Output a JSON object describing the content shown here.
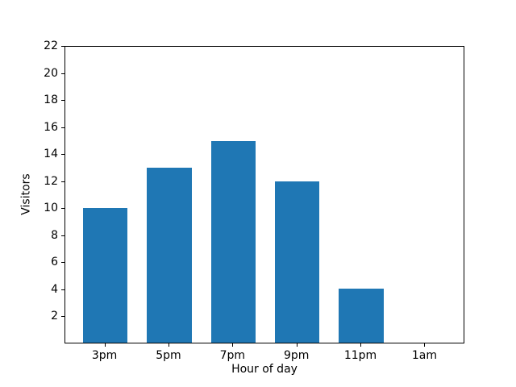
{
  "figure": {
    "background_color": "#ffffff",
    "text_color": "#000000"
  },
  "chart_data": {
    "type": "bar",
    "title": "",
    "categories": [
      "3pm",
      "5pm",
      "7pm",
      "9pm",
      "11pm",
      "1am"
    ],
    "values": [
      10,
      13,
      15,
      12,
      4,
      0
    ],
    "xlabel": "Hour of day",
    "ylabel": "Visitors",
    "ylim": [
      0,
      22
    ],
    "yticks": [
      2,
      4,
      6,
      8,
      10,
      12,
      14,
      16,
      18,
      20,
      22
    ],
    "bar_color": "#1f77b4",
    "grid": false,
    "legend": null
  }
}
